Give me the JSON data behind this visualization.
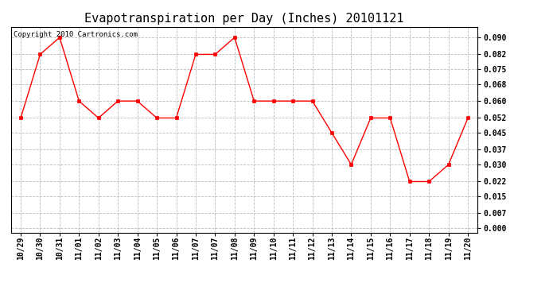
{
  "title": "Evapotranspiration per Day (Inches) 20101121",
  "copyright": "Copyright 2010 Cartronics.com",
  "x_labels": [
    "10/29",
    "10/30",
    "10/31",
    "11/01",
    "11/02",
    "11/03",
    "11/04",
    "11/05",
    "11/06",
    "11/07",
    "11/07",
    "11/08",
    "11/09",
    "11/10",
    "11/11",
    "11/12",
    "11/13",
    "11/14",
    "11/15",
    "11/16",
    "11/17",
    "11/18",
    "11/19",
    "11/20"
  ],
  "y_values": [
    0.052,
    0.082,
    0.09,
    0.06,
    0.052,
    0.06,
    0.06,
    0.052,
    0.052,
    0.082,
    0.082,
    0.09,
    0.06,
    0.06,
    0.06,
    0.06,
    0.045,
    0.03,
    0.052,
    0.052,
    0.022,
    0.022,
    0.03,
    0.052
  ],
  "y_ticks": [
    0.0,
    0.007,
    0.015,
    0.022,
    0.03,
    0.037,
    0.045,
    0.052,
    0.06,
    0.068,
    0.075,
    0.082,
    0.09
  ],
  "ylim": [
    -0.002,
    0.095
  ],
  "line_color": "red",
  "marker": "s",
  "marker_size": 3,
  "bg_color": "white",
  "grid_color": "#bbbbbb",
  "title_fontsize": 11,
  "tick_fontsize": 7,
  "copyright_fontsize": 6.5
}
